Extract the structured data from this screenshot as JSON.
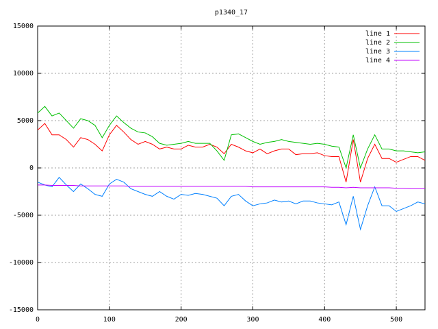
{
  "chart_data": {
    "type": "line",
    "title": "p1340_17",
    "x": [
      0,
      10,
      20,
      30,
      40,
      50,
      60,
      70,
      80,
      90,
      100,
      110,
      120,
      130,
      140,
      150,
      160,
      170,
      180,
      190,
      200,
      210,
      220,
      230,
      240,
      250,
      260,
      270,
      280,
      290,
      300,
      310,
      320,
      330,
      340,
      350,
      360,
      370,
      380,
      390,
      400,
      410,
      420,
      430,
      440,
      450,
      460,
      470,
      480,
      490,
      500,
      510,
      520,
      530,
      540
    ],
    "series": [
      {
        "name": "line 1",
        "color": "#ff0000",
        "values": [
          4000,
          4700,
          3500,
          3500,
          3000,
          2200,
          3200,
          3000,
          2500,
          1800,
          3500,
          4500,
          3800,
          3000,
          2500,
          2800,
          2500,
          2000,
          2200,
          2000,
          2000,
          2400,
          2200,
          2200,
          2500,
          2200,
          1500,
          2500,
          2200,
          1800,
          1600,
          2000,
          1500,
          1800,
          2000,
          2000,
          1400,
          1500,
          1500,
          1600,
          1300,
          1200,
          1200,
          -1500,
          3000,
          -1500,
          1000,
          2500,
          1000,
          1000,
          600,
          900,
          1200,
          1200,
          800
        ]
      },
      {
        "name": "line 2",
        "color": "#00c000",
        "values": [
          5800,
          6500,
          5500,
          5800,
          5000,
          4200,
          5200,
          5000,
          4500,
          3200,
          4500,
          5500,
          4800,
          4200,
          3800,
          3700,
          3300,
          2600,
          2400,
          2500,
          2600,
          2800,
          2600,
          2600,
          2600,
          1800,
          800,
          3500,
          3600,
          3200,
          2800,
          2500,
          2700,
          2800,
          3000,
          2800,
          2700,
          2600,
          2500,
          2600,
          2500,
          2300,
          2200,
          0,
          3500,
          0,
          2000,
          3500,
          2000,
          2000,
          1800,
          1800,
          1700,
          1600,
          1700
        ]
      },
      {
        "name": "line 3",
        "color": "#0080ff",
        "values": [
          -1500,
          -1800,
          -2000,
          -1000,
          -1800,
          -2500,
          -1700,
          -2200,
          -2800,
          -3000,
          -1700,
          -1200,
          -1500,
          -2200,
          -2500,
          -2800,
          -3000,
          -2500,
          -3000,
          -3300,
          -2800,
          -2900,
          -2700,
          -2800,
          -3000,
          -3200,
          -4000,
          -3000,
          -2800,
          -3500,
          -4000,
          -3800,
          -3700,
          -3400,
          -3600,
          -3500,
          -3800,
          -3500,
          -3500,
          -3700,
          -3800,
          -3900,
          -3600,
          -6000,
          -3000,
          -6500,
          -4000,
          -2000,
          -4000,
          -4000,
          -4600,
          -4300,
          -4000,
          -3600,
          -3800
        ]
      },
      {
        "name": "line 4",
        "color": "#c000ff",
        "values": [
          -1800,
          -1800,
          -1850,
          -1850,
          -1850,
          -1850,
          -1900,
          -1900,
          -1900,
          -1900,
          -1900,
          -1900,
          -1900,
          -1950,
          -1950,
          -1950,
          -1950,
          -1950,
          -1950,
          -1950,
          -1950,
          -1950,
          -1950,
          -1950,
          -1950,
          -1950,
          -1950,
          -1950,
          -1950,
          -1950,
          -2000,
          -2000,
          -2000,
          -2000,
          -2000,
          -2000,
          -2000,
          -2000,
          -2000,
          -2000,
          -2000,
          -2050,
          -2050,
          -2100,
          -2050,
          -2100,
          -2100,
          -2100,
          -2100,
          -2100,
          -2150,
          -2150,
          -2200,
          -2200,
          -2200
        ]
      }
    ],
    "xlim": [
      0,
      540
    ],
    "xticks": [
      0,
      100,
      200,
      300,
      400,
      500
    ],
    "ylim": [
      -15000,
      15000
    ],
    "yticks": [
      -15000,
      -10000,
      -5000,
      0,
      5000,
      10000,
      15000
    ],
    "grid": true,
    "legend": "top-right"
  }
}
